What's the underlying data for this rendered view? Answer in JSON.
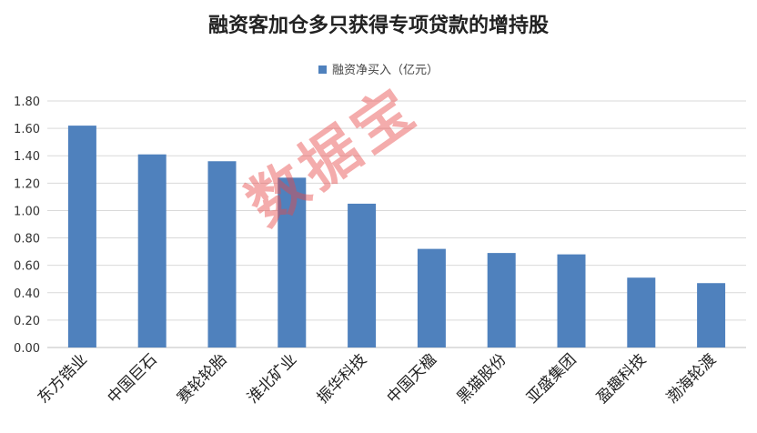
{
  "chart_data": {
    "type": "bar",
    "title": "融资客加仓多只获得专项贷款的增持股",
    "categories": [
      "东方锆业",
      "中国巨石",
      "赛轮轮胎",
      "淮北矿业",
      "振华科技",
      "中国天楹",
      "黑猫股份",
      "亚盛集团",
      "盈趣科技",
      "渤海轮渡"
    ],
    "series": [
      {
        "name": "融资净买入（亿元）",
        "values": [
          1.62,
          1.41,
          1.36,
          1.24,
          1.05,
          0.72,
          0.69,
          0.68,
          0.51,
          0.47
        ]
      }
    ],
    "ylim": [
      0,
      1.8
    ],
    "yticks": [
      "0.00",
      "0.20",
      "0.40",
      "0.60",
      "0.80",
      "1.00",
      "1.20",
      "1.40",
      "1.60",
      "1.80"
    ],
    "grid": true,
    "legend": "top-center",
    "bar_color": "#4f81bd",
    "xlabel": "",
    "ylabel": ""
  },
  "watermark": "数据宝"
}
